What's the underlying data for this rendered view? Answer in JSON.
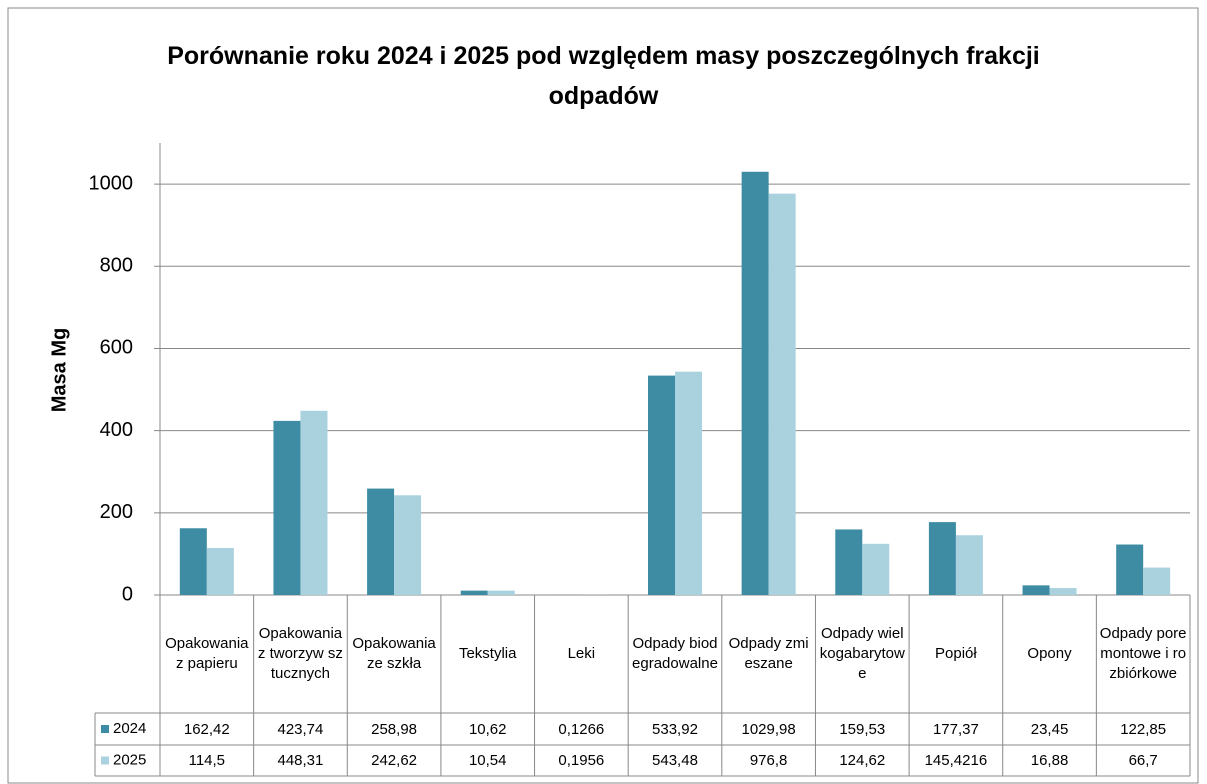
{
  "chart_data": {
    "type": "bar",
    "title": "Porównanie roku 2024 i 2025 pod względem masy poszczególnych frakcji odpadów",
    "y_label": "Masa Mg",
    "categories": [
      "Opakowania z papieru",
      "Opakowania z tworzyw sztucznych",
      "Opakowania ze szkła",
      "Tekstylia",
      "Leki",
      "Odpady biodegradowalne",
      "Odpady zmieszane",
      "Odpady wielkogabarytowe",
      "Popiół",
      "Opony",
      "Odpady poremontowe i rozbiórkowe"
    ],
    "series": [
      {
        "name": "2024",
        "color": "#3d8ca4",
        "values": [
          162.42,
          423.74,
          258.98,
          10.62,
          0.1266,
          533.92,
          1029.98,
          159.53,
          177.37,
          23.45,
          122.85
        ],
        "value_labels": [
          "162,42",
          "423,74",
          "258,98",
          "10,62",
          "0,1266",
          "533,92",
          "1029,98",
          "159,53",
          "177,37",
          "23,45",
          "122,85"
        ]
      },
      {
        "name": "2025",
        "color": "#a9d1de",
        "values": [
          114.5,
          448.31,
          242.62,
          10.54,
          0.1956,
          543.48,
          976.8,
          124.62,
          145.4216,
          16.88,
          66.7
        ],
        "value_labels": [
          "114,5",
          "448,31",
          "242,62",
          "10,54",
          "0,1956",
          "543,48",
          "976,8",
          "124,62",
          "145,4216",
          "16,88",
          "66,7"
        ]
      }
    ],
    "ylim": [
      0,
      1100
    ],
    "yticks": [
      0,
      200,
      400,
      600,
      800,
      1000
    ],
    "grid": true
  }
}
